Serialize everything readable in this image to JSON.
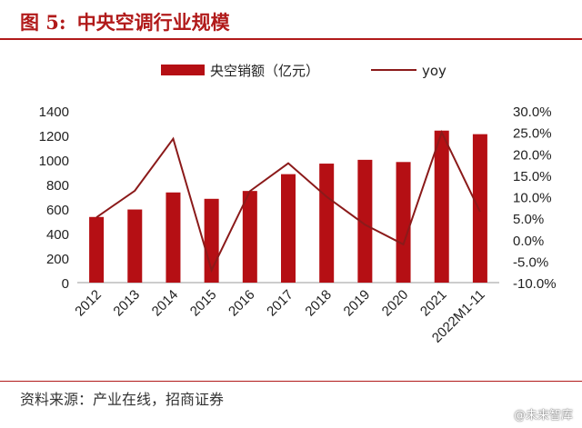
{
  "figure": {
    "label": "图 5:",
    "title": "中央空调行业规模",
    "source": "资料来源：产业在线，招商证券",
    "watermark": "@未来智库"
  },
  "chart_data": {
    "type": "bar+line",
    "categories": [
      "2012",
      "2013",
      "2014",
      "2015",
      "2016",
      "2017",
      "2018",
      "2019",
      "2020",
      "2021",
      "2022M1-11"
    ],
    "series": [
      {
        "name": "央空销额（亿元）",
        "type": "bar",
        "axis": "left",
        "color": "#b50f14",
        "values": [
          535,
          596,
          735,
          683,
          747,
          884,
          970,
          1001,
          983,
          1239,
          1210
        ]
      },
      {
        "name": "yoy",
        "type": "line",
        "axis": "right",
        "color": "#8b1a1a",
        "values": [
          5.2,
          11.4,
          23.5,
          -7.1,
          11.3,
          17.8,
          10.0,
          3.5,
          -1.1,
          25.0,
          6.5
        ]
      }
    ],
    "y_left": {
      "min": 0,
      "max": 1400,
      "ticks": [
        "0",
        "200",
        "400",
        "600",
        "800",
        "1000",
        "1200",
        "1400"
      ]
    },
    "y_right": {
      "min": -10,
      "max": 30,
      "ticks": [
        "-10.0%",
        "-5.0%",
        "0.0%",
        "5.0%",
        "10.0%",
        "15.0%",
        "20.0%",
        "25.0%",
        "30.0%"
      ]
    },
    "grid": false,
    "legend": "top-center"
  }
}
